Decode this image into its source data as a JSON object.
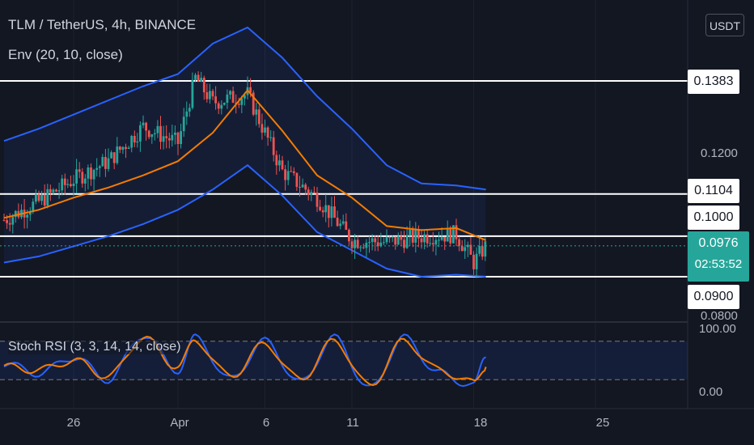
{
  "header": {
    "title": "TLM / TetherUS, 4h, BINANCE",
    "indicator": "Env (20, 10, close)",
    "currency_button": "USDT"
  },
  "oscillator": {
    "label": "Stoch RSI (3, 3, 14, 14, close)",
    "axis_ticks": [
      "100.00",
      "0.00"
    ],
    "levels": [
      80,
      20
    ]
  },
  "price_axis": {
    "ticks": [
      "0.1200",
      "0.0800"
    ],
    "horizontal_levels": [
      "0.1383",
      "0.1104",
      "0.1000",
      "0.0900"
    ],
    "last_price": "0.0976",
    "countdown": "02:53:52"
  },
  "x_axis": {
    "ticks": [
      "26",
      "Apr",
      "6",
      "11",
      "18",
      "25"
    ]
  },
  "colors": {
    "background": "#131722",
    "up": "#26a69a",
    "down": "#ef5350",
    "envelope_band": "#2962ff",
    "basis": "#f57c00",
    "stoch_k": "#2962ff",
    "stoch_d": "#f57c00",
    "level_line": "#ffffff"
  },
  "chart_data": [
    {
      "type": "candlestick",
      "title": "TLM / TetherUS, 4h, BINANCE",
      "x_range": [
        "Mar 22",
        "Apr 29"
      ],
      "y_range": [
        0.08,
        0.155
      ],
      "levels": [
        0.1383,
        0.1104,
        0.1,
        0.09
      ],
      "last_price": 0.0976,
      "envelope": {
        "name": "Env (20, 10, close)",
        "dates": [
          "Mar 22",
          "Mar 24",
          "Mar 26",
          "Mar 28",
          "Mar 30",
          "Apr 1",
          "Apr 3",
          "Apr 5",
          "Apr 7",
          "Apr 9",
          "Apr 11",
          "Apr 13",
          "Apr 15",
          "Apr 17",
          "Apr 18.7"
        ],
        "upper": [
          0.1235,
          0.1265,
          0.13,
          0.1335,
          0.137,
          0.14,
          0.1475,
          0.1515,
          0.144,
          0.1345,
          0.1265,
          0.1175,
          0.113,
          0.1125,
          0.1115
        ],
        "basis": [
          0.1045,
          0.1065,
          0.1095,
          0.112,
          0.115,
          0.1185,
          0.1255,
          0.136,
          0.126,
          0.115,
          0.1095,
          0.1025,
          0.1015,
          0.102,
          0.099
        ],
        "lower": [
          0.0935,
          0.095,
          0.0975,
          0.1,
          0.103,
          0.1065,
          0.1115,
          0.1175,
          0.11,
          0.101,
          0.0965,
          0.092,
          0.09,
          0.0905,
          0.09
        ]
      },
      "candles_summary": {
        "dates": [
          "Mar 22",
          "Mar 24",
          "Mar 26",
          "Mar 28",
          "Mar 30",
          "Apr 1",
          "Apr 2",
          "Apr 3",
          "Apr 5",
          "Apr 7",
          "Apr 9",
          "Apr 11",
          "Apr 13",
          "Apr 15",
          "Apr 17",
          "Apr 18",
          "Apr 18.7"
        ],
        "close": [
          0.104,
          0.1085,
          0.114,
          0.1185,
          0.127,
          0.123,
          0.139,
          0.133,
          0.135,
          0.116,
          0.1095,
          0.099,
          0.0985,
          0.1,
          0.1005,
          0.0935,
          0.0976
        ]
      }
    },
    {
      "type": "line",
      "title": "Stoch RSI (3, 3, 14, 14, close)",
      "y_range": [
        0,
        100
      ],
      "levels": [
        80,
        20
      ],
      "x": [
        "Mar 22",
        "Mar 24",
        "Mar 26",
        "Mar 28",
        "Mar 30",
        "Apr 1",
        "Apr 2",
        "Apr 4",
        "Apr 6",
        "Apr 8",
        "Apr 10",
        "Apr 12",
        "Apr 14",
        "Apr 16",
        "Apr 18",
        "Apr 18.7"
      ],
      "series": [
        {
          "name": "K",
          "values": [
            45,
            30,
            55,
            20,
            90,
            35,
            85,
            20,
            80,
            15,
            85,
            5,
            85,
            30,
            10,
            55
          ]
        },
        {
          "name": "D",
          "values": [
            40,
            35,
            50,
            25,
            85,
            40,
            80,
            25,
            75,
            20,
            80,
            10,
            80,
            35,
            15,
            40
          ]
        }
      ]
    }
  ]
}
